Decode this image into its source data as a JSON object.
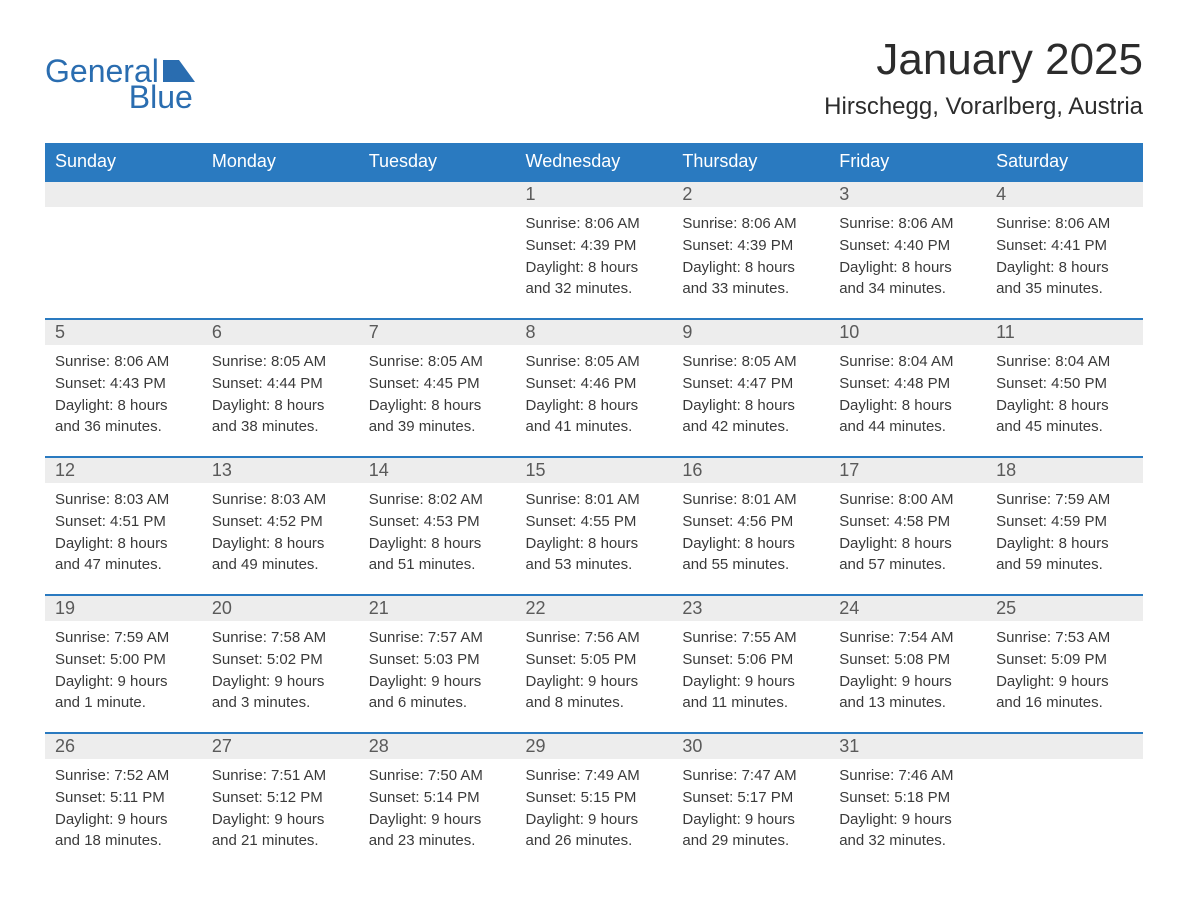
{
  "logo": {
    "text_general": "General",
    "text_blue": "Blue",
    "flag_color": "#2a6db0"
  },
  "title": "January 2025",
  "location": "Hirschegg, Vorarlberg, Austria",
  "colors": {
    "header_bg": "#2a7ac0",
    "header_text": "#ffffff",
    "day_number_bg": "#ededed",
    "day_border": "#2a7ac0",
    "background": "#ffffff",
    "text_color": "#3a3a3a",
    "title_color": "#2c2c2c"
  },
  "day_labels": [
    "Sunday",
    "Monday",
    "Tuesday",
    "Wednesday",
    "Thursday",
    "Friday",
    "Saturday"
  ],
  "weeks": [
    [
      null,
      null,
      null,
      {
        "day": "1",
        "sunrise": "Sunrise: 8:06 AM",
        "sunset": "Sunset: 4:39 PM",
        "daylight1": "Daylight: 8 hours",
        "daylight2": "and 32 minutes."
      },
      {
        "day": "2",
        "sunrise": "Sunrise: 8:06 AM",
        "sunset": "Sunset: 4:39 PM",
        "daylight1": "Daylight: 8 hours",
        "daylight2": "and 33 minutes."
      },
      {
        "day": "3",
        "sunrise": "Sunrise: 8:06 AM",
        "sunset": "Sunset: 4:40 PM",
        "daylight1": "Daylight: 8 hours",
        "daylight2": "and 34 minutes."
      },
      {
        "day": "4",
        "sunrise": "Sunrise: 8:06 AM",
        "sunset": "Sunset: 4:41 PM",
        "daylight1": "Daylight: 8 hours",
        "daylight2": "and 35 minutes."
      }
    ],
    [
      {
        "day": "5",
        "sunrise": "Sunrise: 8:06 AM",
        "sunset": "Sunset: 4:43 PM",
        "daylight1": "Daylight: 8 hours",
        "daylight2": "and 36 minutes."
      },
      {
        "day": "6",
        "sunrise": "Sunrise: 8:05 AM",
        "sunset": "Sunset: 4:44 PM",
        "daylight1": "Daylight: 8 hours",
        "daylight2": "and 38 minutes."
      },
      {
        "day": "7",
        "sunrise": "Sunrise: 8:05 AM",
        "sunset": "Sunset: 4:45 PM",
        "daylight1": "Daylight: 8 hours",
        "daylight2": "and 39 minutes."
      },
      {
        "day": "8",
        "sunrise": "Sunrise: 8:05 AM",
        "sunset": "Sunset: 4:46 PM",
        "daylight1": "Daylight: 8 hours",
        "daylight2": "and 41 minutes."
      },
      {
        "day": "9",
        "sunrise": "Sunrise: 8:05 AM",
        "sunset": "Sunset: 4:47 PM",
        "daylight1": "Daylight: 8 hours",
        "daylight2": "and 42 minutes."
      },
      {
        "day": "10",
        "sunrise": "Sunrise: 8:04 AM",
        "sunset": "Sunset: 4:48 PM",
        "daylight1": "Daylight: 8 hours",
        "daylight2": "and 44 minutes."
      },
      {
        "day": "11",
        "sunrise": "Sunrise: 8:04 AM",
        "sunset": "Sunset: 4:50 PM",
        "daylight1": "Daylight: 8 hours",
        "daylight2": "and 45 minutes."
      }
    ],
    [
      {
        "day": "12",
        "sunrise": "Sunrise: 8:03 AM",
        "sunset": "Sunset: 4:51 PM",
        "daylight1": "Daylight: 8 hours",
        "daylight2": "and 47 minutes."
      },
      {
        "day": "13",
        "sunrise": "Sunrise: 8:03 AM",
        "sunset": "Sunset: 4:52 PM",
        "daylight1": "Daylight: 8 hours",
        "daylight2": "and 49 minutes."
      },
      {
        "day": "14",
        "sunrise": "Sunrise: 8:02 AM",
        "sunset": "Sunset: 4:53 PM",
        "daylight1": "Daylight: 8 hours",
        "daylight2": "and 51 minutes."
      },
      {
        "day": "15",
        "sunrise": "Sunrise: 8:01 AM",
        "sunset": "Sunset: 4:55 PM",
        "daylight1": "Daylight: 8 hours",
        "daylight2": "and 53 minutes."
      },
      {
        "day": "16",
        "sunrise": "Sunrise: 8:01 AM",
        "sunset": "Sunset: 4:56 PM",
        "daylight1": "Daylight: 8 hours",
        "daylight2": "and 55 minutes."
      },
      {
        "day": "17",
        "sunrise": "Sunrise: 8:00 AM",
        "sunset": "Sunset: 4:58 PM",
        "daylight1": "Daylight: 8 hours",
        "daylight2": "and 57 minutes."
      },
      {
        "day": "18",
        "sunrise": "Sunrise: 7:59 AM",
        "sunset": "Sunset: 4:59 PM",
        "daylight1": "Daylight: 8 hours",
        "daylight2": "and 59 minutes."
      }
    ],
    [
      {
        "day": "19",
        "sunrise": "Sunrise: 7:59 AM",
        "sunset": "Sunset: 5:00 PM",
        "daylight1": "Daylight: 9 hours",
        "daylight2": "and 1 minute."
      },
      {
        "day": "20",
        "sunrise": "Sunrise: 7:58 AM",
        "sunset": "Sunset: 5:02 PM",
        "daylight1": "Daylight: 9 hours",
        "daylight2": "and 3 minutes."
      },
      {
        "day": "21",
        "sunrise": "Sunrise: 7:57 AM",
        "sunset": "Sunset: 5:03 PM",
        "daylight1": "Daylight: 9 hours",
        "daylight2": "and 6 minutes."
      },
      {
        "day": "22",
        "sunrise": "Sunrise: 7:56 AM",
        "sunset": "Sunset: 5:05 PM",
        "daylight1": "Daylight: 9 hours",
        "daylight2": "and 8 minutes."
      },
      {
        "day": "23",
        "sunrise": "Sunrise: 7:55 AM",
        "sunset": "Sunset: 5:06 PM",
        "daylight1": "Daylight: 9 hours",
        "daylight2": "and 11 minutes."
      },
      {
        "day": "24",
        "sunrise": "Sunrise: 7:54 AM",
        "sunset": "Sunset: 5:08 PM",
        "daylight1": "Daylight: 9 hours",
        "daylight2": "and 13 minutes."
      },
      {
        "day": "25",
        "sunrise": "Sunrise: 7:53 AM",
        "sunset": "Sunset: 5:09 PM",
        "daylight1": "Daylight: 9 hours",
        "daylight2": "and 16 minutes."
      }
    ],
    [
      {
        "day": "26",
        "sunrise": "Sunrise: 7:52 AM",
        "sunset": "Sunset: 5:11 PM",
        "daylight1": "Daylight: 9 hours",
        "daylight2": "and 18 minutes."
      },
      {
        "day": "27",
        "sunrise": "Sunrise: 7:51 AM",
        "sunset": "Sunset: 5:12 PM",
        "daylight1": "Daylight: 9 hours",
        "daylight2": "and 21 minutes."
      },
      {
        "day": "28",
        "sunrise": "Sunrise: 7:50 AM",
        "sunset": "Sunset: 5:14 PM",
        "daylight1": "Daylight: 9 hours",
        "daylight2": "and 23 minutes."
      },
      {
        "day": "29",
        "sunrise": "Sunrise: 7:49 AM",
        "sunset": "Sunset: 5:15 PM",
        "daylight1": "Daylight: 9 hours",
        "daylight2": "and 26 minutes."
      },
      {
        "day": "30",
        "sunrise": "Sunrise: 7:47 AM",
        "sunset": "Sunset: 5:17 PM",
        "daylight1": "Daylight: 9 hours",
        "daylight2": "and 29 minutes."
      },
      {
        "day": "31",
        "sunrise": "Sunrise: 7:46 AM",
        "sunset": "Sunset: 5:18 PM",
        "daylight1": "Daylight: 9 hours",
        "daylight2": "and 32 minutes."
      },
      null
    ]
  ]
}
